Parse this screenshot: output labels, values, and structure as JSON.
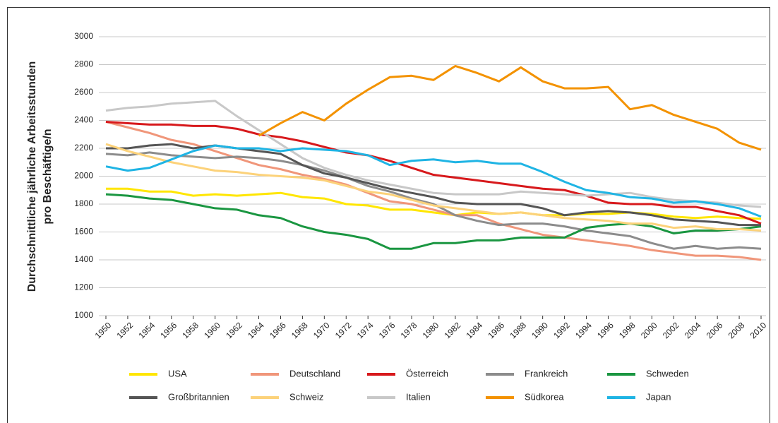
{
  "chart_data": {
    "type": "line",
    "y_label": [
      "Durchschnittliche jährliche Arbeitsstunden",
      "pro Beschäftige/n"
    ],
    "x": [
      1950,
      1952,
      1954,
      1956,
      1958,
      1960,
      1962,
      1964,
      1966,
      1968,
      1970,
      1972,
      1974,
      1976,
      1978,
      1980,
      1982,
      1984,
      1986,
      1988,
      1990,
      1992,
      1994,
      1996,
      1998,
      2000,
      2002,
      2004,
      2006,
      2008,
      2010
    ],
    "xlim": [
      1950,
      2010
    ],
    "xticks": [
      1950,
      1952,
      1954,
      1956,
      1958,
      1960,
      1962,
      1964,
      1966,
      1968,
      1970,
      1972,
      1974,
      1976,
      1978,
      1980,
      1982,
      1984,
      1986,
      1988,
      1990,
      1992,
      1994,
      1996,
      1998,
      2000,
      2002,
      2004,
      2006,
      2008,
      2010
    ],
    "ylim": [
      1000,
      3000
    ],
    "yticks": [
      1000,
      1200,
      1400,
      1600,
      1800,
      2000,
      2200,
      2400,
      2600,
      2800,
      3000
    ],
    "grid": true,
    "legend": "bottom",
    "series": [
      {
        "name": "USA",
        "color": "#ffe600",
        "values": [
          1910,
          1910,
          1890,
          1890,
          1860,
          1870,
          1860,
          1870,
          1880,
          1850,
          1840,
          1800,
          1790,
          1760,
          1760,
          1740,
          1720,
          1740,
          1730,
          1740,
          1720,
          1720,
          1730,
          1730,
          1740,
          1730,
          1710,
          1700,
          1710,
          1700,
          1695
        ]
      },
      {
        "name": "Deutschland",
        "color": "#f0967a",
        "values": [
          2390,
          2350,
          2310,
          2260,
          2230,
          2180,
          2130,
          2080,
          2050,
          2010,
          1980,
          1940,
          1880,
          1820,
          1800,
          1760,
          1720,
          1720,
          1660,
          1620,
          1580,
          1560,
          1540,
          1520,
          1500,
          1470,
          1450,
          1430,
          1430,
          1420,
          1400
        ]
      },
      {
        "name": "Österreich",
        "color": "#d7191c",
        "values": [
          2390,
          2380,
          2370,
          2370,
          2360,
          2360,
          2340,
          2300,
          2280,
          2250,
          2210,
          2170,
          2150,
          2110,
          2060,
          2010,
          1990,
          1970,
          1950,
          1930,
          1910,
          1900,
          1860,
          1810,
          1800,
          1800,
          1780,
          1780,
          1750,
          1720,
          1660
        ]
      },
      {
        "name": "Frankreich",
        "color": "#8c8c8c",
        "values": [
          2160,
          2150,
          2170,
          2150,
          2140,
          2130,
          2140,
          2130,
          2110,
          2080,
          2040,
          1990,
          1930,
          1890,
          1840,
          1800,
          1720,
          1680,
          1650,
          1660,
          1660,
          1640,
          1610,
          1590,
          1570,
          1520,
          1480,
          1500,
          1480,
          1490,
          1480
        ]
      },
      {
        "name": "Schweden",
        "color": "#1a9641",
        "values": [
          1870,
          1860,
          1840,
          1830,
          1800,
          1770,
          1760,
          1720,
          1700,
          1640,
          1600,
          1580,
          1550,
          1480,
          1480,
          1520,
          1520,
          1540,
          1540,
          1560,
          1560,
          1560,
          1630,
          1650,
          1660,
          1640,
          1590,
          1610,
          1610,
          1620,
          1640
        ]
      },
      {
        "name": "Großbritannien",
        "color": "#555555",
        "values": [
          2200,
          2200,
          2220,
          2230,
          2200,
          2220,
          2200,
          2180,
          2160,
          2080,
          2020,
          1990,
          1950,
          1910,
          1880,
          1850,
          1810,
          1800,
          1800,
          1800,
          1770,
          1720,
          1740,
          1750,
          1740,
          1720,
          1690,
          1680,
          1670,
          1650,
          1650
        ]
      },
      {
        "name": "Schweiz",
        "color": "#fcd27a",
        "values": [
          2230,
          2180,
          2140,
          2100,
          2070,
          2040,
          2030,
          2010,
          2000,
          1990,
          1970,
          1930,
          1890,
          1870,
          1830,
          1790,
          1770,
          1750,
          1730,
          1740,
          1720,
          1700,
          1690,
          1680,
          1660,
          1660,
          1630,
          1640,
          1620,
          1620,
          1610
        ]
      },
      {
        "name": "Italien",
        "color": "#c8c8c8",
        "values": [
          2470,
          2490,
          2500,
          2520,
          2530,
          2540,
          2430,
          2330,
          2230,
          2130,
          2060,
          2010,
          1970,
          1940,
          1910,
          1880,
          1870,
          1870,
          1870,
          1890,
          1880,
          1870,
          1860,
          1870,
          1880,
          1850,
          1830,
          1820,
          1810,
          1790,
          1780
        ]
      },
      {
        "name": "Südkorea",
        "color": "#f39200",
        "values": [
          null,
          null,
          null,
          null,
          null,
          null,
          null,
          2290,
          2380,
          2460,
          2400,
          2520,
          2620,
          2710,
          2720,
          2690,
          2790,
          2740,
          2680,
          2780,
          2680,
          2630,
          2630,
          2640,
          2480,
          2510,
          2440,
          2390,
          2340,
          2240,
          2190
        ]
      },
      {
        "name": "Japan",
        "color": "#1fb4e4",
        "values": [
          2070,
          2040,
          2060,
          2120,
          2180,
          2220,
          2200,
          2200,
          2180,
          2200,
          2190,
          2180,
          2150,
          2080,
          2110,
          2120,
          2100,
          2110,
          2090,
          2090,
          2030,
          1960,
          1900,
          1880,
          1850,
          1840,
          1810,
          1820,
          1800,
          1770,
          1710
        ]
      }
    ]
  }
}
